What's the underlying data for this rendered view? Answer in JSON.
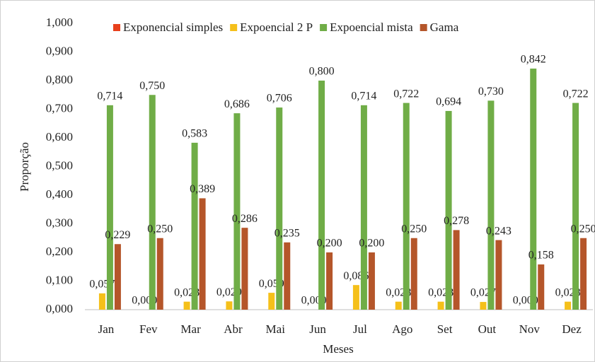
{
  "chart_data": {
    "type": "bar",
    "x_label": "Meses",
    "y_label": "Proporção",
    "categories": [
      "Jan",
      "Fev",
      "Mar",
      "Abr",
      "Mai",
      "Jun",
      "Jul",
      "Ago",
      "Set",
      "Out",
      "Nov",
      "Dez"
    ],
    "series": [
      {
        "name": "Exponencial simples",
        "color": "#e8401c",
        "values": [
          0,
          0,
          0,
          0,
          0,
          0,
          0,
          0,
          0,
          0,
          0,
          0
        ]
      },
      {
        "name": "Expoencial 2 P",
        "color": "#f5c01a",
        "values": [
          0.057,
          0.0,
          0.028,
          0.029,
          0.059,
          0.0,
          0.086,
          0.028,
          0.028,
          0.027,
          0.0,
          0.028
        ],
        "value_labels": [
          "0,057",
          "0,000",
          "0,028",
          "0,029",
          "0,059",
          "0,000",
          "0,086",
          "0,028",
          "0,028",
          "0,027",
          "0,000",
          "0,028"
        ]
      },
      {
        "name": "Expoencial mista",
        "color": "#70ad47",
        "values": [
          0.714,
          0.75,
          0.583,
          0.686,
          0.706,
          0.8,
          0.714,
          0.722,
          0.694,
          0.73,
          0.842,
          0.722
        ],
        "value_labels": [
          "0,714",
          "0,750",
          "0,583",
          "0,686",
          "0,706",
          "0,800",
          "0,714",
          "0,722",
          "0,694",
          "0,730",
          "0,842",
          "0,722"
        ]
      },
      {
        "name": "Gama",
        "color": "#b5562a",
        "values": [
          0.229,
          0.25,
          0.389,
          0.286,
          0.235,
          0.2,
          0.2,
          0.25,
          0.278,
          0.243,
          0.158,
          0.25
        ],
        "value_labels": [
          "0,229",
          "0,250",
          "0,389",
          "0,286",
          "0,235",
          "0,200",
          "0,200",
          "0,250",
          "0,278",
          "0,243",
          "0,158",
          "0,250"
        ]
      }
    ],
    "ylim": [
      0,
      1
    ],
    "yticks": [
      {
        "value": 0,
        "label": "0,000"
      },
      {
        "value": 0.1,
        "label": "0,100"
      },
      {
        "value": 0.2,
        "label": "0,200"
      },
      {
        "value": 0.3,
        "label": "0,300"
      },
      {
        "value": 0.4,
        "label": "0,400"
      },
      {
        "value": 0.5,
        "label": "0,500"
      },
      {
        "value": 0.6,
        "label": "0,600"
      },
      {
        "value": 0.7,
        "label": "0,700"
      },
      {
        "value": 0.8,
        "label": "0,800"
      },
      {
        "value": 0.9,
        "label": "0,900"
      },
      {
        "value": 1,
        "label": "1,000"
      }
    ],
    "legend": "top"
  }
}
